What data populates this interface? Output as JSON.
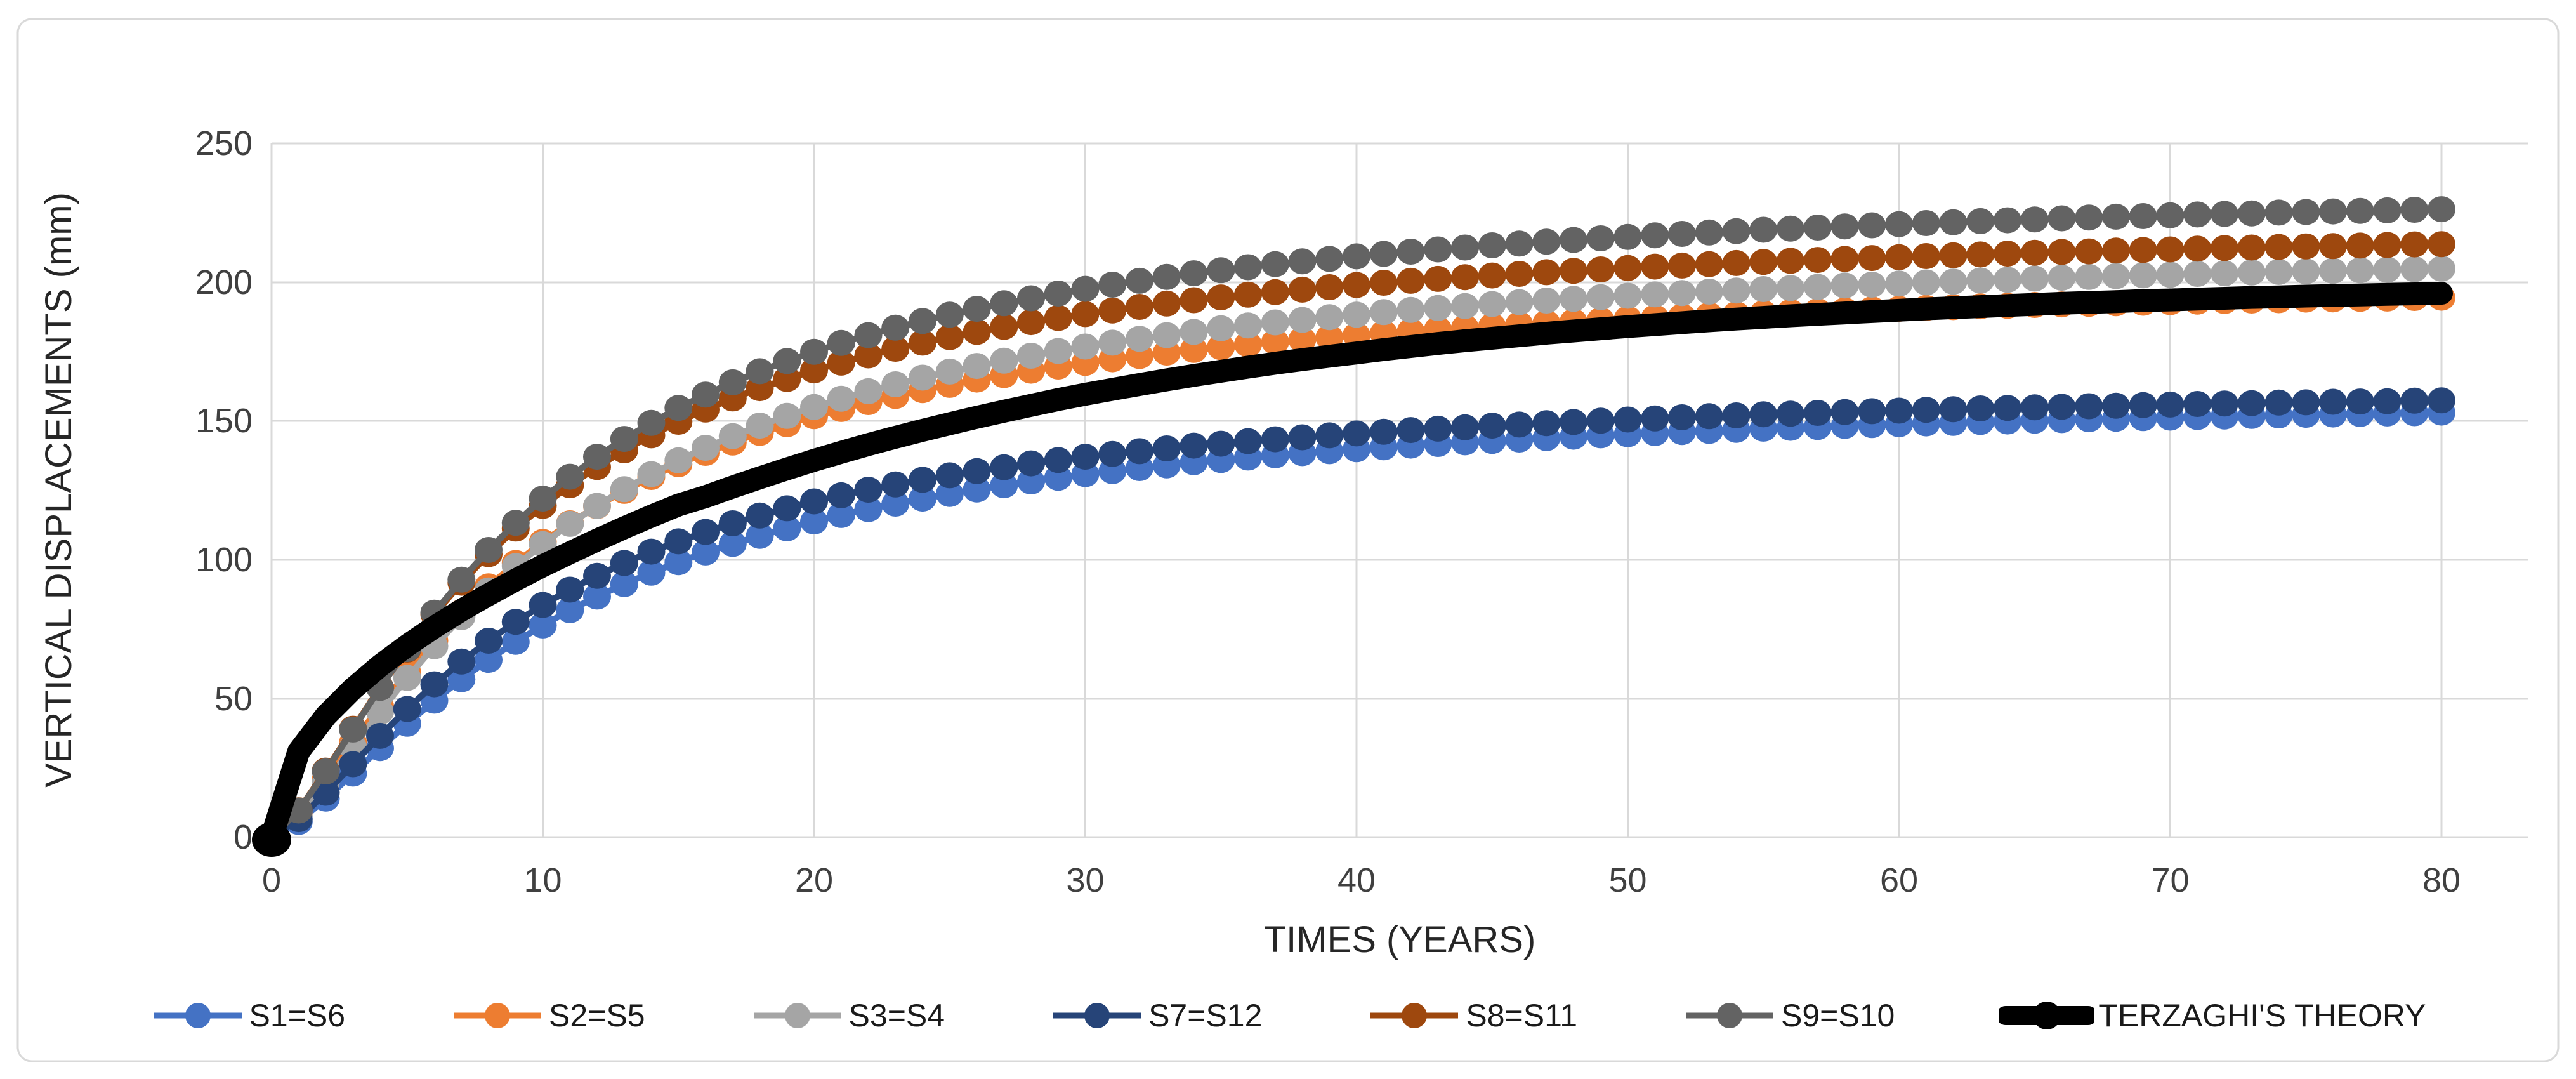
{
  "chart_data": {
    "type": "line",
    "title": "",
    "xlabel": "TIMES (YEARS)",
    "ylabel": "VERTICAL DISPLACEMENTS (mm)",
    "xlim": [
      0,
      80
    ],
    "ylim": [
      0,
      250
    ],
    "x_ticks": [
      0,
      10,
      20,
      30,
      40,
      50,
      60,
      70,
      80
    ],
    "y_ticks": [
      0,
      50,
      100,
      150,
      200,
      250
    ],
    "grid": true,
    "legend_position": "bottom",
    "grid_color": "#D9D9D9",
    "tick_color": "#404040",
    "background": "#ffffff",
    "x": [
      0,
      1,
      2,
      3,
      4,
      5,
      6,
      7,
      8,
      9,
      10,
      11,
      12,
      13,
      14,
      15,
      16,
      17,
      18,
      19,
      20,
      21,
      22,
      23,
      24,
      25,
      26,
      27,
      28,
      29,
      30,
      31,
      32,
      33,
      34,
      35,
      36,
      37,
      38,
      39,
      40,
      41,
      42,
      43,
      44,
      45,
      46,
      47,
      48,
      49,
      50,
      51,
      52,
      53,
      54,
      55,
      56,
      57,
      58,
      59,
      60,
      61,
      62,
      63,
      64,
      65,
      66,
      67,
      68,
      69,
      70,
      71,
      72,
      73,
      74,
      75,
      76,
      77,
      78,
      79,
      80
    ],
    "series": [
      {
        "name": "S1=S6",
        "color": "#4472C4",
        "style": "line-markers",
        "marker": "circle",
        "values": [
          0,
          5.5,
          13.9,
          22.9,
          32.1,
          40.9,
          49.2,
          56.9,
          63.9,
          70.4,
          76.3,
          81.8,
          86.7,
          91.2,
          95.3,
          99.1,
          102.6,
          105.7,
          108.6,
          111.3,
          113.8,
          116.1,
          118.2,
          120.2,
          122.0,
          123.7,
          125.3,
          126.8,
          128.2,
          129.5,
          130.8,
          131.9,
          133.0,
          134.0,
          135.1,
          135.9,
          136.8,
          137.6,
          138.4,
          139.1,
          139.8,
          140.5,
          141.1,
          141.7,
          142.3,
          142.8,
          143.3,
          143.8,
          144.3,
          144.8,
          145.2,
          145.6,
          146.0,
          146.4,
          146.8,
          147.2,
          147.5,
          147.8,
          148.2,
          148.5,
          148.8,
          149.1,
          149.3,
          149.6,
          149.8,
          150.1,
          150.3,
          150.6,
          150.8,
          151.0,
          151.2,
          151.4,
          151.6,
          151.8,
          152.0,
          152.2,
          152.3,
          152.5,
          152.7,
          152.8,
          153.0
        ]
      },
      {
        "name": "S2=S5",
        "color": "#ED7D31",
        "style": "line-markers",
        "marker": "circle",
        "values": [
          0,
          8.4,
          20.9,
          34.1,
          47.2,
          59.4,
          70.8,
          81.1,
          90.4,
          98.8,
          106.4,
          113.1,
          119.3,
          124.8,
          129.8,
          134.4,
          138.5,
          142.2,
          145.7,
          148.8,
          151.7,
          154.3,
          156.8,
          159.0,
          161.1,
          163.0,
          164.9,
          166.5,
          168.1,
          169.6,
          170.9,
          172.2,
          173.4,
          174.6,
          175.6,
          176.6,
          177.6,
          178.5,
          179.3,
          180.1,
          180.9,
          181.6,
          182.3,
          183.0,
          183.6,
          184.2,
          184.8,
          185.3,
          185.8,
          186.3,
          186.8,
          187.2,
          187.6,
          188.1,
          188.4,
          188.8,
          189.2,
          189.5,
          189.8,
          190.2,
          190.4,
          190.7,
          191.0,
          191.3,
          191.5,
          191.8,
          192.0,
          192.2,
          192.4,
          192.6,
          192.8,
          193.0,
          193.2,
          193.4,
          193.5,
          193.7,
          193.8,
          194.0,
          194.1,
          194.3,
          194.4
        ]
      },
      {
        "name": "S3=S4",
        "color": "#A5A5A5",
        "style": "line-markers",
        "marker": "circle",
        "values": [
          0,
          7.9,
          19.7,
          32.5,
          45.2,
          57.4,
          68.8,
          79.3,
          88.9,
          97.7,
          105.6,
          112.9,
          119.4,
          125.4,
          130.8,
          135.8,
          140.3,
          144.5,
          148.3,
          151.8,
          155.0,
          158.0,
          160.7,
          163.2,
          165.6,
          167.8,
          169.8,
          171.7,
          173.5,
          175.2,
          176.8,
          178.2,
          179.6,
          180.9,
          182.1,
          183.4,
          184.4,
          185.5,
          186.4,
          187.4,
          188.3,
          189.2,
          190.0,
          190.7,
          191.4,
          192.1,
          192.8,
          193.4,
          194.0,
          194.6,
          195.1,
          195.6,
          196.1,
          196.6,
          197.0,
          197.5,
          197.9,
          198.3,
          198.8,
          199.1,
          199.5,
          199.9,
          200.2,
          200.6,
          200.9,
          201.3,
          201.6,
          201.9,
          202.2,
          202.5,
          202.7,
          203.0,
          203.2,
          203.5,
          203.7,
          203.9,
          204.1,
          204.3,
          204.5,
          204.7,
          204.9
        ]
      },
      {
        "name": "S7=S12",
        "color": "#264478",
        "style": "line-markers",
        "marker": "circle",
        "values": [
          0,
          6.5,
          16.0,
          26.3,
          36.5,
          46.2,
          55.1,
          63.3,
          70.8,
          77.6,
          83.7,
          89.2,
          94.2,
          98.8,
          102.9,
          106.6,
          110.0,
          113.1,
          115.9,
          118.5,
          121.0,
          123.2,
          125.2,
          127.1,
          128.8,
          130.4,
          131.9,
          133.3,
          134.7,
          135.9,
          137.1,
          138.1,
          139.1,
          140.1,
          141.1,
          141.8,
          142.7,
          143.4,
          144.1,
          144.8,
          145.5,
          146.1,
          146.7,
          147.2,
          147.7,
          148.3,
          148.7,
          149.2,
          149.6,
          150.1,
          150.5,
          150.9,
          151.3,
          151.7,
          152.0,
          152.4,
          152.6,
          152.9,
          153.2,
          153.5,
          153.7,
          154.0,
          154.2,
          154.5,
          154.7,
          154.9,
          155.1,
          155.3,
          155.5,
          155.7,
          155.9,
          156.1,
          156.3,
          156.4,
          156.6,
          156.7,
          156.9,
          157.0,
          157.1,
          157.3,
          157.4
        ]
      },
      {
        "name": "S8=S11",
        "color": "#9E480E",
        "style": "line-markers",
        "marker": "circle",
        "values": [
          0,
          9.7,
          24.0,
          39.1,
          53.9,
          67.6,
          80.3,
          91.7,
          102.0,
          111.2,
          119.4,
          126.8,
          133.4,
          139.4,
          144.8,
          149.7,
          154.1,
          158.1,
          161.8,
          165.1,
          168.2,
          171.0,
          173.6,
          176.0,
          178.2,
          180.2,
          182.1,
          183.9,
          185.6,
          187.1,
          188.5,
          189.8,
          191.1,
          192.3,
          193.5,
          194.5,
          195.5,
          196.4,
          197.3,
          198.2,
          199.0,
          199.8,
          200.5,
          201.2,
          201.8,
          202.4,
          203.0,
          203.6,
          204.1,
          204.6,
          205.1,
          205.6,
          206.0,
          206.5,
          206.9,
          207.3,
          207.7,
          208.0,
          208.4,
          208.7,
          209.0,
          209.4,
          209.7,
          210.0,
          210.3,
          210.6,
          210.9,
          211.1,
          211.4,
          211.6,
          211.8,
          212.1,
          212.3,
          212.5,
          212.7,
          212.9,
          213.0,
          213.2,
          213.4,
          213.6,
          213.7
        ]
      },
      {
        "name": "S9=S10",
        "color": "#636363",
        "style": "line-markers",
        "marker": "circle",
        "values": [
          0,
          9.6,
          23.7,
          38.8,
          53.8,
          67.8,
          80.9,
          92.8,
          103.5,
          113.3,
          122.0,
          129.9,
          137.1,
          143.5,
          149.3,
          154.7,
          159.5,
          163.9,
          167.9,
          171.6,
          174.9,
          178.1,
          180.9,
          183.6,
          186.0,
          188.3,
          190.4,
          192.4,
          194.2,
          195.9,
          197.6,
          199.1,
          200.5,
          201.9,
          203.2,
          204.3,
          205.4,
          206.5,
          207.5,
          208.4,
          209.3,
          210.2,
          211.0,
          211.8,
          212.5,
          213.3,
          213.9,
          214.6,
          215.2,
          215.8,
          216.3,
          216.9,
          217.4,
          217.9,
          218.4,
          218.9,
          219.3,
          219.7,
          220.1,
          220.5,
          220.9,
          221.3,
          221.6,
          222.0,
          222.3,
          222.6,
          223.0,
          223.3,
          223.6,
          223.8,
          224.1,
          224.4,
          224.6,
          224.8,
          225.1,
          225.3,
          225.5,
          225.7,
          225.9,
          226.1,
          226.3
        ]
      },
      {
        "name": "TERZAGHI'S THEORY",
        "color": "#000000",
        "style": "thick-line",
        "marker": "circle",
        "values": [
          0,
          30.9,
          43.7,
          53.5,
          61.8,
          69.1,
          75.7,
          81.8,
          87.4,
          92.7,
          97.8,
          102.5,
          107.1,
          111.5,
          115.7,
          119.7,
          122.7,
          126.2,
          129.5,
          132.7,
          135.8,
          138.7,
          141.5,
          144.1,
          146.6,
          149.0,
          151.3,
          153.5,
          155.6,
          157.7,
          159.6,
          161.4,
          163.1,
          164.8,
          166.4,
          167.9,
          169.4,
          170.8,
          172.1,
          173.3,
          174.5,
          175.7,
          176.8,
          177.9,
          178.9,
          179.8,
          180.7,
          181.6,
          182.4,
          183.2,
          184.0,
          184.7,
          185.4,
          186.1,
          186.7,
          187.3,
          187.9,
          188.4,
          188.9,
          189.4,
          189.9,
          190.4,
          190.8,
          191.2,
          191.6,
          192.0,
          192.4,
          192.7,
          193.0,
          193.4,
          193.6,
          193.9,
          194.2,
          194.5,
          194.7,
          195.0,
          195.2,
          195.4,
          195.6,
          195.8,
          196.0
        ]
      }
    ]
  }
}
